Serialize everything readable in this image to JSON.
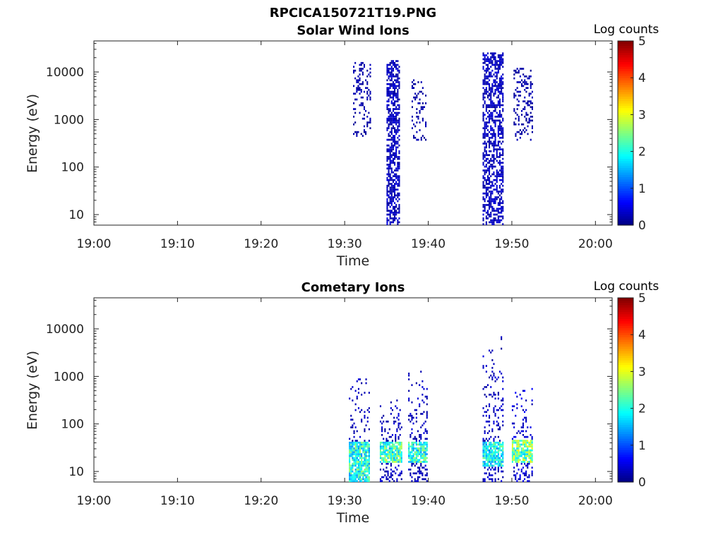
{
  "figure": {
    "title": "RPCICA150721T19.PNG"
  },
  "chart_data": [
    {
      "type": "heatmap",
      "title": "Solar Wind Ions",
      "xlabel": "Time",
      "ylabel": "Energy (eV)",
      "x_ticks": [
        "19:00",
        "19:10",
        "19:20",
        "19:30",
        "19:40",
        "19:50",
        "20:00"
      ],
      "x_range_minutes": [
        0,
        62
      ],
      "y_scale": "log",
      "y_range": [
        6,
        45000
      ],
      "y_ticks": [
        "10",
        "100",
        "1000",
        "10000"
      ],
      "y_tick_values": [
        10,
        100,
        1000,
        10000
      ],
      "colorbar": {
        "label": "Log counts",
        "range": [
          0,
          5
        ],
        "ticks": [
          "0",
          "1",
          "2",
          "3",
          "4",
          "5"
        ],
        "colormap": "jet"
      },
      "bursts": [
        {
          "t_start": 31.0,
          "t_end": 33.0,
          "e_min": 400,
          "e_max": 15000,
          "log_counts": 0.2,
          "density": 0.22
        },
        {
          "t_start": 35.0,
          "t_end": 36.5,
          "e_min": 6,
          "e_max": 17000,
          "log_counts": 0.3,
          "density": 0.6
        },
        {
          "t_start": 38.0,
          "t_end": 39.8,
          "e_min": 350,
          "e_max": 7000,
          "log_counts": 0.2,
          "density": 0.2
        },
        {
          "t_start": 46.5,
          "t_end": 49.0,
          "e_min": 6,
          "e_max": 25000,
          "log_counts": 0.3,
          "density": 0.55
        },
        {
          "t_start": 50.2,
          "t_end": 52.5,
          "e_min": 350,
          "e_max": 12000,
          "log_counts": 0.2,
          "density": 0.28
        }
      ]
    },
    {
      "type": "heatmap",
      "title": "Cometary Ions",
      "xlabel": "Time",
      "ylabel": "Energy (eV)",
      "x_ticks": [
        "19:00",
        "19:10",
        "19:20",
        "19:30",
        "19:40",
        "19:50",
        "20:00"
      ],
      "x_range_minutes": [
        0,
        62
      ],
      "y_scale": "log",
      "y_range": [
        6,
        45000
      ],
      "y_ticks": [
        "10",
        "100",
        "1000",
        "10000"
      ],
      "y_tick_values": [
        10,
        100,
        1000,
        10000
      ],
      "colorbar": {
        "label": "Log counts",
        "range": [
          0,
          5
        ],
        "ticks": [
          "0",
          "1",
          "2",
          "3",
          "4",
          "5"
        ],
        "colormap": "jet"
      },
      "bursts": [
        {
          "t_start": 30.5,
          "t_end": 33.0,
          "e_min": 6,
          "e_max": 1100,
          "core_e": [
            6,
            40
          ],
          "core_log_counts": 2.3,
          "log_counts": 0.3,
          "density": 0.35
        },
        {
          "t_start": 34.2,
          "t_end": 36.8,
          "e_min": 6,
          "e_max": 350,
          "core_e": [
            15,
            40
          ],
          "core_log_counts": 2.5,
          "log_counts": 0.3,
          "density": 0.35
        },
        {
          "t_start": 37.6,
          "t_end": 39.8,
          "e_min": 6,
          "e_max": 1200,
          "core_e": [
            15,
            40
          ],
          "core_log_counts": 2.4,
          "log_counts": 0.3,
          "density": 0.35
        },
        {
          "t_start": 46.5,
          "t_end": 49.0,
          "e_min": 6,
          "e_max": 7000,
          "core_e": [
            12,
            40
          ],
          "core_log_counts": 2.2,
          "log_counts": 0.3,
          "density": 0.3
        },
        {
          "t_start": 50.0,
          "t_end": 52.5,
          "e_min": 6,
          "e_max": 550,
          "core_e": [
            15,
            45
          ],
          "core_log_counts": 2.8,
          "log_counts": 0.4,
          "density": 0.35
        }
      ]
    }
  ]
}
